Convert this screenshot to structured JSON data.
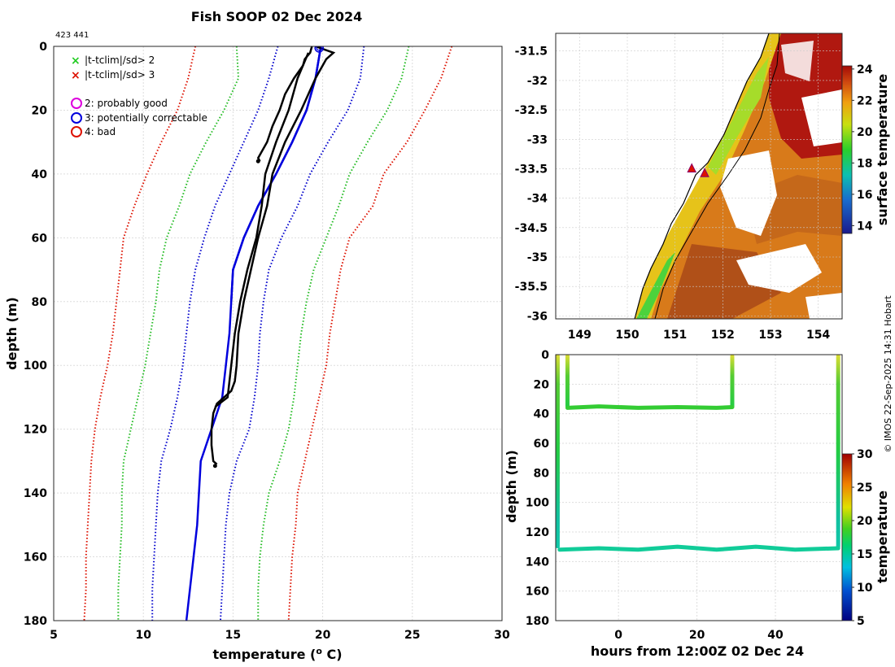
{
  "title": "Fish SOOP 02 Dec 2024",
  "profile_ids": "423 441",
  "stamp": "© IMOS 22-Sep-2025 14:31 Hobart",
  "colors": {
    "obs": "#000000",
    "clim": "#0000dd",
    "sd1": "#0000cc",
    "sd2": "#22bb22",
    "sd3": "#dd1100"
  },
  "legend": {
    "cross_green": "|t-tclim|/sd> 2",
    "cross_red": "|t-tclim|/sd> 3",
    "circle_magenta": "2: probably good",
    "circle_blue": "3: potentially correctable",
    "circle_red": "4: bad"
  },
  "chart_data": [
    {
      "type": "line",
      "name": "profile",
      "xlabel": "temperature (o C)",
      "ylabel": "depth (m)",
      "xlim": [
        5,
        30
      ],
      "ylim": [
        180,
        0
      ],
      "xticks": [
        5,
        10,
        15,
        20,
        25,
        30
      ],
      "yticks": [
        0,
        20,
        40,
        60,
        80,
        100,
        120,
        140,
        160,
        180
      ],
      "series": [
        {
          "name": "clim -3sd",
          "style": "sd3",
          "depth": [
            0,
            10,
            20,
            30,
            40,
            50,
            60,
            70,
            80,
            90,
            100,
            110,
            120,
            130,
            140,
            150,
            160,
            170,
            180
          ],
          "temp": [
            12.9,
            12.5,
            11.9,
            11.0,
            10.2,
            9.5,
            8.9,
            8.7,
            8.5,
            8.3,
            8.0,
            7.6,
            7.3,
            7.1,
            7.0,
            6.9,
            6.8,
            6.8,
            6.7
          ]
        },
        {
          "name": "clim -2sd",
          "style": "sd2",
          "depth": [
            0,
            10,
            20,
            30,
            40,
            50,
            60,
            70,
            80,
            90,
            100,
            110,
            120,
            130,
            140,
            150,
            160,
            170,
            180
          ],
          "temp": [
            15.2,
            15.3,
            14.5,
            13.5,
            12.6,
            12.0,
            11.3,
            10.9,
            10.7,
            10.4,
            10.1,
            9.7,
            9.3,
            8.9,
            8.8,
            8.8,
            8.7,
            8.6,
            8.6
          ]
        },
        {
          "name": "clim -1sd",
          "style": "sd1",
          "depth": [
            0,
            10,
            20,
            30,
            40,
            50,
            60,
            70,
            80,
            90,
            100,
            110,
            120,
            130,
            140,
            150,
            160,
            170,
            180
          ],
          "temp": [
            17.5,
            17.0,
            16.4,
            15.6,
            14.8,
            14.0,
            13.4,
            12.9,
            12.6,
            12.4,
            12.2,
            11.9,
            11.5,
            11.0,
            10.8,
            10.7,
            10.6,
            10.5,
            10.5
          ]
        },
        {
          "name": "climatology",
          "style": "clim",
          "depth": [
            0,
            10,
            20,
            30,
            40,
            50,
            60,
            70,
            80
          ],
          "temp": [
            19.9,
            19.6,
            19.1,
            18.3,
            17.4,
            16.4,
            15.6,
            15.0,
            14.9
          ]
        },
        {
          "name": "climatology",
          "style": "clim",
          "depth": [
            0,
            10,
            20,
            30,
            40,
            50,
            60,
            70,
            80,
            90,
            100,
            110,
            120,
            130,
            140,
            150,
            160,
            170,
            180
          ],
          "temp": [
            19.9,
            19.6,
            19.1,
            18.3,
            17.4,
            16.4,
            15.6,
            15.0,
            14.9,
            14.8,
            14.6,
            14.4,
            13.8,
            13.2,
            13.1,
            13.0,
            12.8,
            12.6,
            12.4
          ]
        },
        {
          "name": "clim +1sd",
          "style": "sd1",
          "depth": [
            0,
            10,
            20,
            30,
            40,
            50,
            60,
            70,
            80,
            90,
            100,
            110,
            120,
            130,
            140,
            150,
            160,
            170,
            180
          ],
          "temp": [
            22.3,
            22.1,
            21.4,
            20.3,
            19.3,
            18.6,
            17.7,
            17.0,
            16.7,
            16.5,
            16.4,
            16.2,
            15.9,
            15.2,
            14.8,
            14.6,
            14.5,
            14.4,
            14.3
          ]
        },
        {
          "name": "clim +2sd",
          "style": "sd2",
          "depth": [
            0,
            10,
            20,
            30,
            40,
            50,
            60,
            70,
            80,
            90,
            100,
            110,
            120,
            130,
            140,
            150,
            160,
            170,
            180
          ],
          "temp": [
            24.8,
            24.4,
            23.6,
            22.5,
            21.5,
            20.9,
            20.2,
            19.5,
            19.1,
            18.8,
            18.6,
            18.4,
            18.1,
            17.6,
            17.0,
            16.7,
            16.5,
            16.4,
            16.4
          ]
        },
        {
          "name": "clim +3sd",
          "style": "sd3",
          "depth": [
            0,
            10,
            20,
            30,
            40,
            50,
            60,
            70,
            80,
            90,
            100,
            110,
            120,
            130,
            140,
            150,
            160,
            170,
            180
          ],
          "temp": [
            27.2,
            26.6,
            25.7,
            24.7,
            23.4,
            22.8,
            21.5,
            21.0,
            20.7,
            20.4,
            20.2,
            19.8,
            19.4,
            19.0,
            18.6,
            18.5,
            18.3,
            18.2,
            18.1
          ]
        },
        {
          "name": "obs 423",
          "style": "obs",
          "depth": [
            0,
            2,
            4,
            6,
            10,
            15,
            20,
            25,
            30,
            35,
            36
          ],
          "temp": [
            19.4,
            19.3,
            19.0,
            18.9,
            18.4,
            17.9,
            17.6,
            17.2,
            16.9,
            16.4,
            16.5
          ]
        },
        {
          "name": "obs 441",
          "style": "obs",
          "depth": [
            0,
            2,
            4,
            10,
            20,
            30,
            40,
            50,
            60,
            70,
            80,
            90,
            100,
            105,
            108,
            110,
            112,
            115,
            120,
            125,
            130,
            131
          ],
          "temp": [
            19.6,
            20.6,
            20.2,
            19.6,
            18.8,
            17.9,
            17.2,
            16.9,
            16.4,
            16.0,
            15.6,
            15.3,
            15.2,
            15.1,
            14.9,
            14.5,
            14.1,
            13.9,
            13.8,
            13.8,
            13.9,
            14.1
          ]
        },
        {
          "name": "obs 441b",
          "style": "obs",
          "depth": [
            2,
            10,
            20,
            30,
            40,
            50,
            60,
            70,
            80,
            90,
            100,
            110,
            113
          ],
          "temp": [
            19.2,
            18.6,
            18.1,
            17.4,
            16.8,
            16.6,
            16.3,
            15.8,
            15.4,
            15.1,
            14.9,
            14.7,
            14.0
          ]
        }
      ]
    },
    {
      "type": "heatmap",
      "name": "map",
      "colorbar_label": "surface temperature",
      "xlim": [
        148.5,
        154.5
      ],
      "ylim": [
        -36.05,
        -31.2
      ],
      "xticks": [
        149,
        150,
        151,
        152,
        153,
        154
      ],
      "yticks": [
        -31.5,
        -32,
        -32.5,
        -33,
        -33.5,
        -34,
        -34.5,
        -35,
        -35.5,
        -36
      ],
      "clim": [
        13.5,
        24.2
      ],
      "cticks": [
        14,
        16,
        18,
        20,
        22,
        24
      ],
      "markers": [
        {
          "lon": 151.35,
          "lat": -33.5
        },
        {
          "lon": 151.62,
          "lat": -33.58
        }
      ]
    },
    {
      "type": "scatter",
      "name": "section",
      "xlabel": "hours from 12:00Z 02 Dec 24",
      "ylabel": "depth (m)",
      "colorbar_label": "temperature",
      "xlim": [
        -16,
        57
      ],
      "ylim": [
        180,
        0
      ],
      "xticks": [
        0,
        20,
        40
      ],
      "yticks": [
        0,
        20,
        40,
        60,
        80,
        100,
        120,
        140,
        160,
        180
      ],
      "clim": [
        5,
        30
      ],
      "cticks": [
        5,
        10,
        15,
        20,
        25,
        30
      ],
      "casts": [
        {
          "t_down": -15,
          "t_up": -13,
          "maxdepth": 36
        },
        {
          "t_down": 29,
          "t_up": 29,
          "maxdepth": 36
        },
        {
          "t_down": -15,
          "t_up": 56,
          "maxdepth": 131
        }
      ],
      "bottom_lines": [
        {
          "depth_from": 36,
          "t": [
            -13,
            -5,
            5,
            15,
            25,
            29
          ],
          "d": [
            36,
            35,
            36,
            35.5,
            36,
            35.5
          ],
          "temp": 17
        },
        {
          "depth_from": 131,
          "t": [
            -15,
            -5,
            5,
            15,
            25,
            35,
            45,
            56
          ],
          "d": [
            132,
            131,
            132,
            130,
            132,
            130,
            132,
            131
          ],
          "temp": 14
        }
      ]
    }
  ]
}
